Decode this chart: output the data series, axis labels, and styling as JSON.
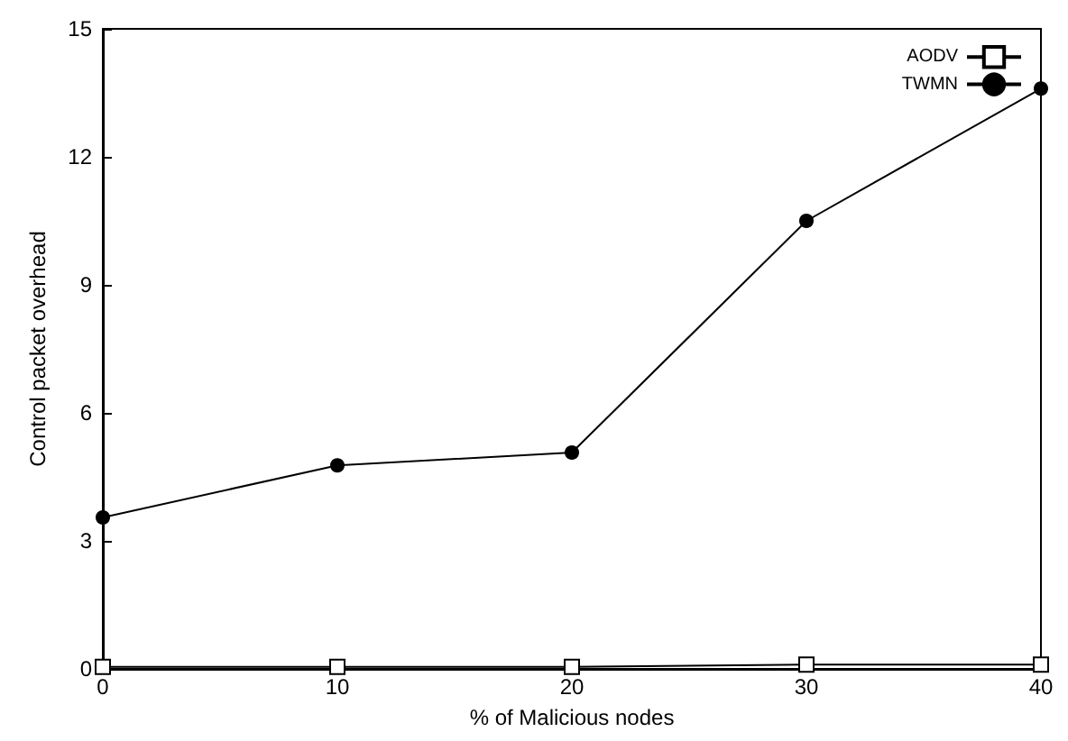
{
  "chart_data": {
    "type": "line",
    "xlabel": "% of Malicious nodes",
    "ylabel": "Control packet overhead",
    "x": [
      0,
      10,
      20,
      30,
      40
    ],
    "series": [
      {
        "name": "AODV",
        "color": "#000000",
        "marker": "square",
        "values": [
          0.05,
          0.05,
          0.05,
          0.1,
          0.1
        ]
      },
      {
        "name": "TWMN",
        "color": "#000000",
        "marker": "circle",
        "values": [
          3.55,
          4.77,
          5.07,
          10.5,
          13.6
        ]
      }
    ],
    "xlim": [
      0,
      40
    ],
    "xticks": [
      0,
      10,
      20,
      30,
      40
    ],
    "ylim": [
      0,
      15
    ],
    "yticks": [
      0,
      3,
      6,
      9,
      12,
      15
    ],
    "grid": false,
    "legend": "top right",
    "line_style": "solid"
  }
}
